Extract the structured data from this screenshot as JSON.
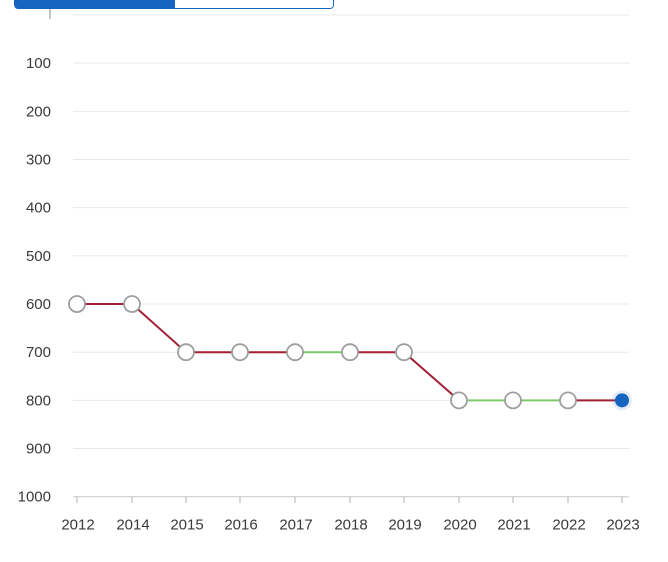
{
  "view_toggle": {
    "active_index": 0,
    "accent": "#1565c0"
  },
  "chart_data": {
    "type": "line",
    "x": [
      "2012",
      "2014",
      "2015",
      "2016",
      "2017",
      "2018",
      "2019",
      "2020",
      "2021",
      "2022",
      "2023"
    ],
    "y_ticks": [
      "100",
      "200",
      "300",
      "400",
      "500",
      "600",
      "700",
      "800",
      "900",
      "1000"
    ],
    "ylim": [
      0,
      1000
    ],
    "y_inverted": true,
    "grid": true,
    "series": [
      {
        "values": [
          600,
          600,
          700,
          700,
          700,
          700,
          700,
          800,
          800,
          800,
          800
        ]
      }
    ],
    "segment_colors": [
      "#a31f34",
      "#a31f34",
      "#a31f34",
      "#a31f34",
      "#7dc86a",
      "#a31f34",
      "#a31f34",
      "#7dc86a",
      "#7dc86a",
      "#a31f34"
    ],
    "colors": {
      "decline": "#a31f34",
      "stable": "#7dc86a",
      "current_point": "#1565c0",
      "marker_stroke": "#9e9e9e"
    }
  }
}
